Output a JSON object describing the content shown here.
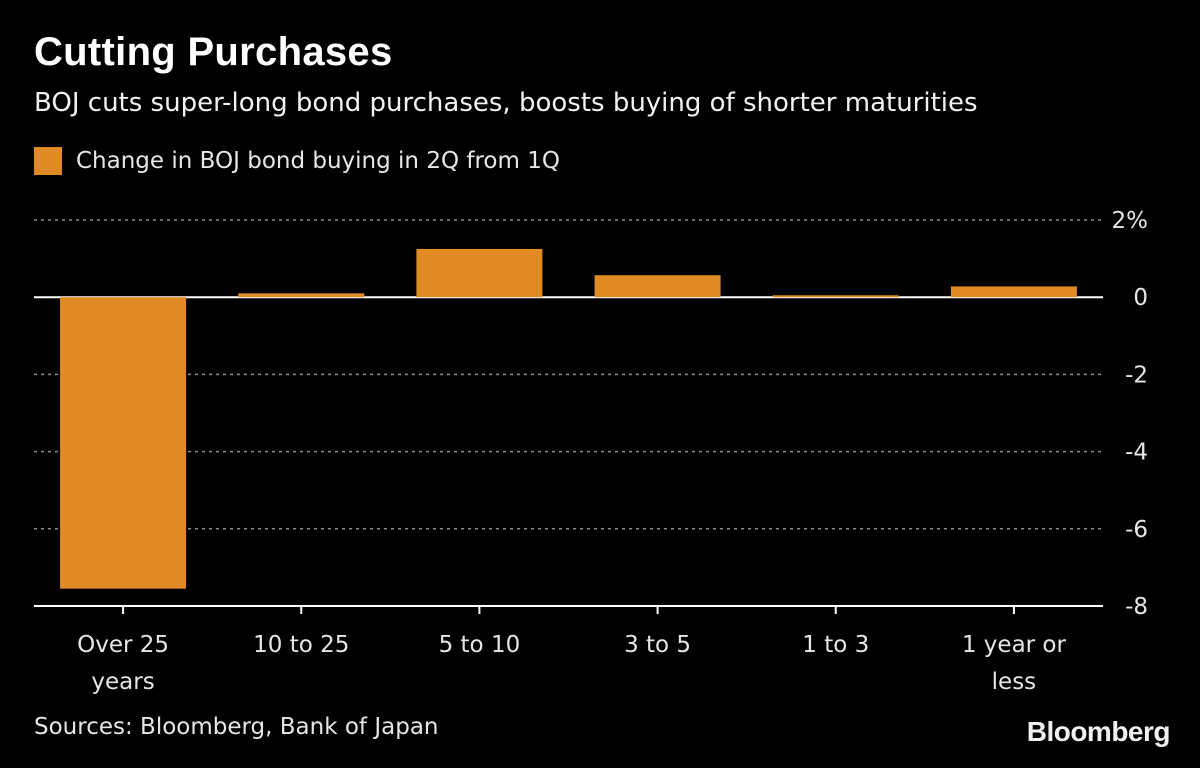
{
  "brand": "Bloomberg",
  "source": "Sources: Bloomberg, Bank of Japan",
  "colors": {
    "bar": "#e08b25",
    "background": "#000000",
    "grid": "#8a8a8a"
  },
  "chart_data": {
    "type": "bar",
    "title": "Cutting Purchases",
    "subtitle": "BOJ cuts super-long bond purchases, boosts buying of shorter maturities",
    "legend": "Change in BOJ bond buying in 2Q from 1Q",
    "categories": [
      [
        "Over 25",
        "years"
      ],
      [
        "10 to 25"
      ],
      [
        "5 to 10"
      ],
      [
        "3 to 5"
      ],
      [
        "1 to 3"
      ],
      [
        "1 year or",
        "less"
      ]
    ],
    "values": [
      -7.55,
      0.1,
      1.25,
      0.57,
      0.05,
      0.28
    ],
    "ylim": [
      -8,
      2
    ],
    "yticks": [
      2,
      0,
      -2,
      -4,
      -6,
      -8
    ],
    "ytick_labels": [
      "2%",
      "0",
      "-2",
      "-4",
      "-6",
      "-8"
    ],
    "grid": true,
    "xlabel": "",
    "ylabel": ""
  }
}
